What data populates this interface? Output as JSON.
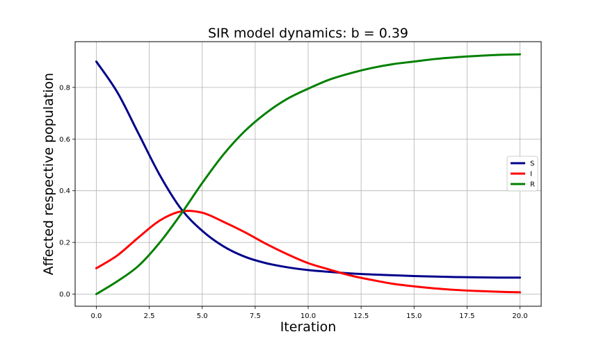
{
  "chart_data": {
    "type": "line",
    "title": "SIR model dynamics: b = 0.39",
    "xlabel": "Iteration",
    "ylabel": "Affected respective population",
    "xlim": [
      -1.0,
      21.0
    ],
    "ylim": [
      -0.047,
      0.977
    ],
    "xticks": [
      0.0,
      2.5,
      5.0,
      7.5,
      10.0,
      12.5,
      15.0,
      17.5,
      20.0
    ],
    "xtick_labels": [
      "0.0",
      "2.5",
      "5.0",
      "7.5",
      "10.0",
      "12.5",
      "15.0",
      "17.5",
      "20.0"
    ],
    "yticks": [
      0.0,
      0.2,
      0.4,
      0.6,
      0.8
    ],
    "ytick_labels": [
      "0.0",
      "0.2",
      "0.4",
      "0.6",
      "0.8"
    ],
    "grid": true,
    "legend_position": "center-right",
    "x": [
      0,
      1,
      2,
      3,
      4,
      5,
      6,
      7,
      8,
      9,
      10,
      11,
      12,
      13,
      14,
      15,
      16,
      17,
      18,
      19,
      20
    ],
    "series": [
      {
        "name": "S",
        "color": "#00008b",
        "values": [
          0.9,
          0.78,
          0.62,
          0.46,
          0.33,
          0.245,
          0.185,
          0.145,
          0.12,
          0.104,
          0.093,
          0.086,
          0.08,
          0.076,
          0.073,
          0.07,
          0.068,
          0.066,
          0.065,
          0.064,
          0.064
        ]
      },
      {
        "name": "I",
        "color": "#ff0000",
        "values": [
          0.1,
          0.15,
          0.22,
          0.285,
          0.32,
          0.315,
          0.28,
          0.24,
          0.195,
          0.155,
          0.12,
          0.095,
          0.072,
          0.055,
          0.04,
          0.03,
          0.022,
          0.016,
          0.012,
          0.009,
          0.007
        ]
      },
      {
        "name": "R",
        "color": "#008000",
        "values": [
          0.0,
          0.05,
          0.11,
          0.2,
          0.31,
          0.43,
          0.54,
          0.63,
          0.7,
          0.755,
          0.795,
          0.83,
          0.855,
          0.875,
          0.89,
          0.9,
          0.91,
          0.917,
          0.922,
          0.926,
          0.928
        ]
      }
    ]
  }
}
